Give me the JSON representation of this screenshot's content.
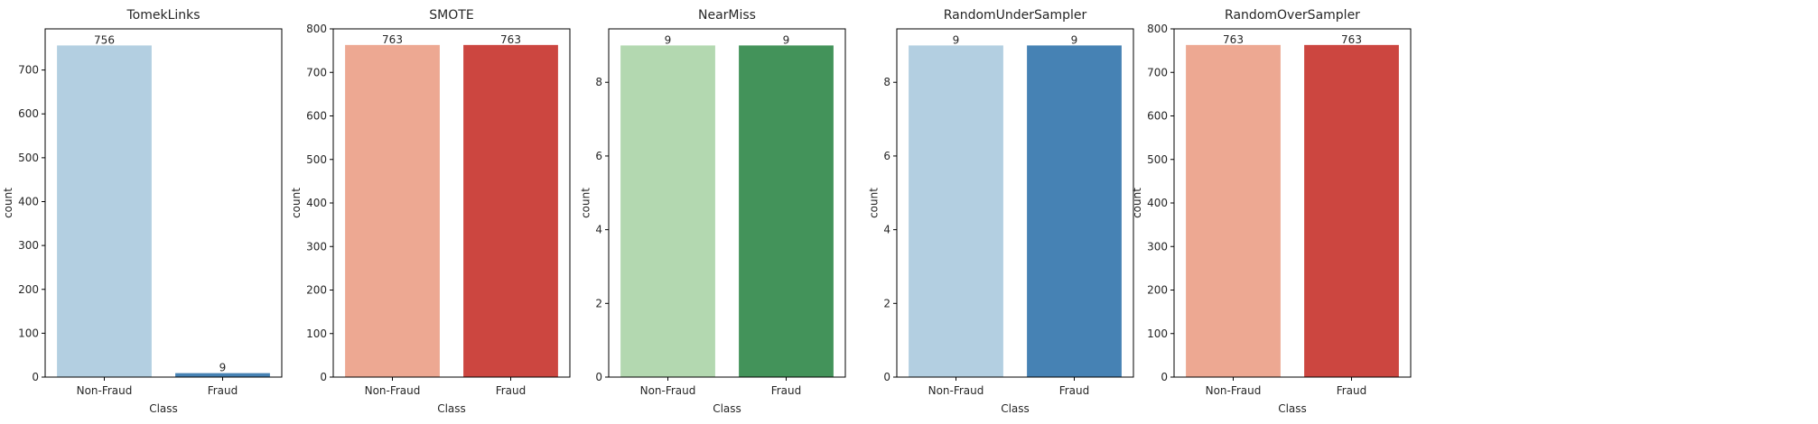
{
  "chart_data": [
    {
      "type": "bar",
      "title": "TomekLinks",
      "xlabel": "Class",
      "ylabel": "count",
      "categories": [
        "Non-Fraud",
        "Fraud"
      ],
      "values": [
        756,
        9
      ],
      "value_labels": [
        "756",
        "9"
      ],
      "ylim": [
        0,
        793.8
      ],
      "yticks": [
        0,
        100,
        200,
        300,
        400,
        500,
        600,
        700
      ],
      "colors": [
        "#b3cfe1",
        "#4682b4"
      ],
      "grid": false
    },
    {
      "type": "bar",
      "title": "SMOTE",
      "xlabel": "Class",
      "ylabel": "count",
      "categories": [
        "Non-Fraud",
        "Fraud"
      ],
      "values": [
        763,
        763
      ],
      "value_labels": [
        "763",
        "763"
      ],
      "ylim": [
        0,
        800
      ],
      "yticks": [
        0,
        100,
        200,
        300,
        400,
        500,
        600,
        700,
        800
      ],
      "colors": [
        "#eda892",
        "#cc4640"
      ],
      "grid": false
    },
    {
      "type": "bar",
      "title": "NearMiss",
      "xlabel": "Class",
      "ylabel": "count",
      "categories": [
        "Non-Fraud",
        "Fraud"
      ],
      "values": [
        9,
        9
      ],
      "value_labels": [
        "9",
        "9"
      ],
      "ylim": [
        0,
        9.45
      ],
      "yticks": [
        0,
        2,
        4,
        6,
        8
      ],
      "colors": [
        "#b3d8b0",
        "#43935a"
      ],
      "grid": false
    },
    {
      "type": "bar",
      "title": "RandomUnderSampler",
      "xlabel": "Class",
      "ylabel": "count",
      "categories": [
        "Non-Fraud",
        "Fraud"
      ],
      "values": [
        9,
        9
      ],
      "value_labels": [
        "9",
        "9"
      ],
      "ylim": [
        0,
        9.45
      ],
      "yticks": [
        0,
        2,
        4,
        6,
        8
      ],
      "colors": [
        "#b3cfe1",
        "#4682b4"
      ],
      "grid": false
    },
    {
      "type": "bar",
      "title": "RandomOverSampler",
      "xlabel": "Class",
      "ylabel": "count",
      "categories": [
        "Non-Fraud",
        "Fraud"
      ],
      "values": [
        763,
        763
      ],
      "value_labels": [
        "763",
        "763"
      ],
      "ylim": [
        0,
        800
      ],
      "yticks": [
        0,
        100,
        200,
        300,
        400,
        500,
        600,
        700,
        800
      ],
      "colors": [
        "#eda892",
        "#cc4640"
      ],
      "grid": false
    }
  ]
}
